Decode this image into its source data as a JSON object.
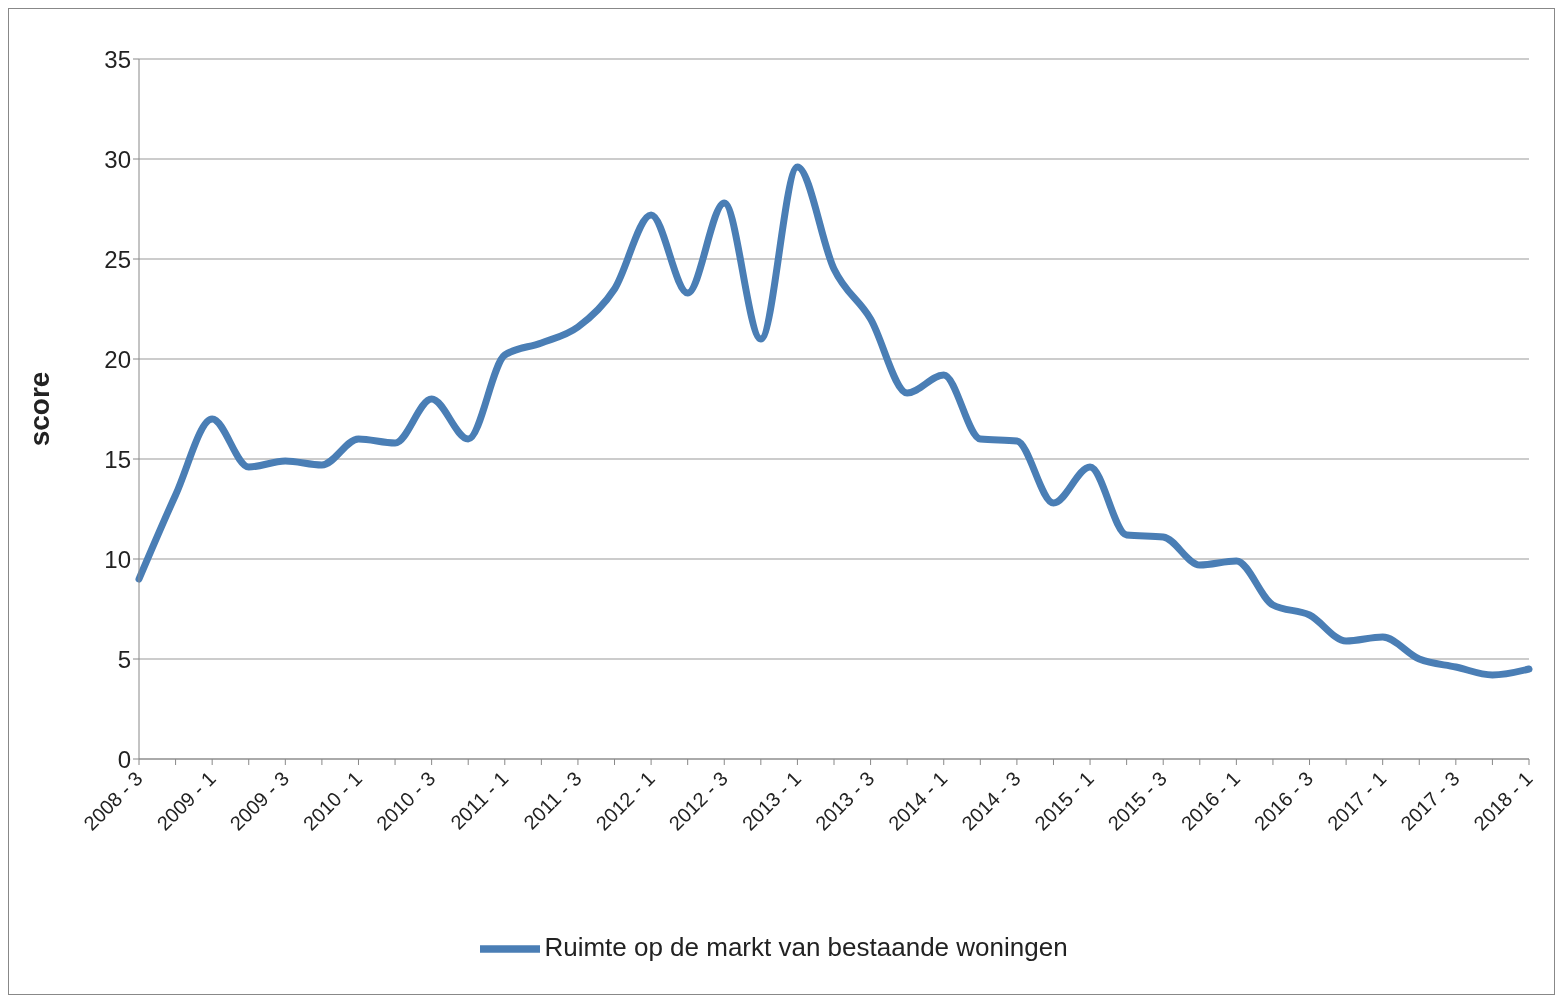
{
  "chart_data": {
    "type": "line",
    "ylabel": "score",
    "categories": [
      "2008 - 3",
      null,
      "2009 - 1",
      null,
      "2009 - 3",
      null,
      "2010 - 1",
      null,
      "2010 - 3",
      null,
      "2011 - 1",
      null,
      "2011 - 3",
      null,
      "2012 - 1",
      null,
      "2012 - 3",
      null,
      "2013 - 1",
      null,
      "2013 - 3",
      null,
      "2014 - 1",
      null,
      "2014 - 3",
      null,
      "2015 - 1",
      null,
      "2015 - 3",
      null,
      "2016 - 1",
      null,
      "2016 - 3",
      null,
      "2017 - 1",
      null,
      "2017 - 3",
      null,
      "2018 - 1"
    ],
    "series": [
      {
        "name": "Ruimte op de markt van bestaande woningen",
        "color": "#4a7eb5",
        "values": [
          9,
          13.2,
          17,
          14.6,
          14.9,
          14.7,
          16,
          15.8,
          18,
          16,
          20.2,
          20.8,
          21.6,
          23.5,
          27.2,
          23.3,
          27.8,
          21,
          29.6,
          24.5,
          22,
          18.3,
          19.2,
          16,
          15.9,
          12.8,
          14.6,
          11.2,
          11.1,
          9.7,
          9.9,
          7.7,
          7.2,
          5.9,
          6.1,
          5,
          4.6,
          4.2,
          4.5
        ]
      }
    ],
    "ylim": [
      0,
      35
    ],
    "yticks": [
      0,
      5,
      10,
      15,
      20,
      25,
      30,
      35
    ],
    "grid": "y",
    "legend": "bottom",
    "marker": "none",
    "line_style": "solid"
  }
}
